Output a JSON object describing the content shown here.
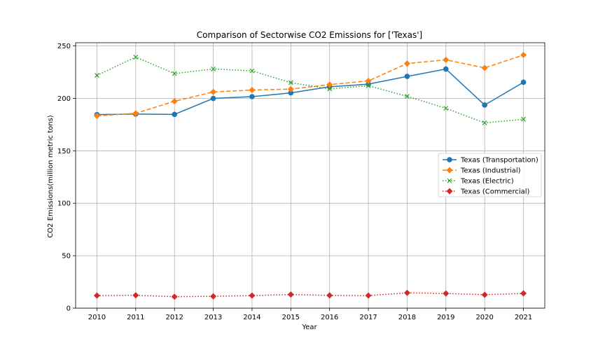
{
  "chart_data": {
    "type": "line",
    "title": "Comparison of Sectorwise CO2 Emissions for ['Texas']",
    "xlabel": "Year",
    "ylabel": "CO2 Emissions(million metric tons)",
    "x": [
      2010,
      2011,
      2012,
      2013,
      2014,
      2015,
      2016,
      2017,
      2018,
      2019,
      2020,
      2021
    ],
    "ylim": [
      0,
      253
    ],
    "yticks": [
      0,
      50,
      100,
      150,
      200,
      250
    ],
    "grid": true,
    "legend_position": "center-right",
    "series": [
      {
        "name": "Texas (Transportation)",
        "color": "#1f77b4",
        "linestyle": "solid",
        "marker": "circle",
        "values": [
          184.5,
          185.0,
          184.7,
          199.9,
          201.6,
          205.2,
          211.0,
          213.5,
          220.9,
          227.9,
          193.6,
          215.3
        ]
      },
      {
        "name": "Texas (Industrial)",
        "color": "#ff7f0e",
        "linestyle": "dashed",
        "marker": "diamond",
        "values": [
          183.3,
          185.7,
          197.2,
          206.1,
          207.9,
          208.8,
          213.1,
          216.6,
          233.1,
          236.7,
          229.0,
          241.3
        ]
      },
      {
        "name": "Texas (Electric)",
        "color": "#2ca02c",
        "linestyle": "dotted",
        "marker": "x",
        "values": [
          221.9,
          239.3,
          223.6,
          228.0,
          226.2,
          215.0,
          209.0,
          212.0,
          201.9,
          190.5,
          176.6,
          180.1
        ]
      },
      {
        "name": "Texas (Commercial)",
        "color": "#d62728",
        "linestyle": "dotted",
        "marker": "diamond",
        "values": [
          12.0,
          12.3,
          10.9,
          11.3,
          12.0,
          13.0,
          12.2,
          12.0,
          14.6,
          14.0,
          12.8,
          14.1
        ]
      }
    ]
  }
}
